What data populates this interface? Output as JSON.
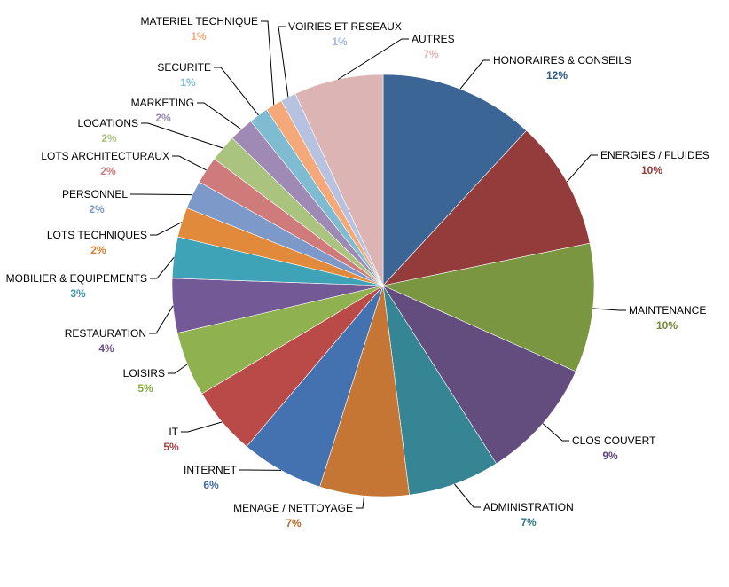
{
  "chart_data": {
    "type": "pie",
    "title": "",
    "start_angle_deg": 0,
    "direction": "clockwise",
    "legend": "none",
    "slices": [
      {
        "label": "HONORAIRES & CONSEILS",
        "pct_label": "12%",
        "value": 12.0,
        "color": "#3B6594",
        "label_color": "#2F5A88"
      },
      {
        "label": "ENERGIES / FLUIDES",
        "pct_label": "10%",
        "value": 10.0,
        "color": "#943B3B",
        "label_color": "#943B3B"
      },
      {
        "label": "MAINTENANCE",
        "pct_label": "10%",
        "value": 10.0,
        "color": "#7A9641",
        "label_color": "#6F8A38"
      },
      {
        "label": "CLOS COUVERT",
        "pct_label": "9%",
        "value": 9.4,
        "color": "#634C7E",
        "label_color": "#5A3F78"
      },
      {
        "label": "ADMINISTRATION",
        "pct_label": "7%",
        "value": 7.1,
        "color": "#358594",
        "label_color": "#2F7D8C"
      },
      {
        "label": "MENAGE / NETTOYAGE",
        "pct_label": "7%",
        "value": 6.9,
        "color": "#C67634",
        "label_color": "#B86A2C"
      },
      {
        "label": "INTERNET",
        "pct_label": "6%",
        "value": 6.4,
        "color": "#4472B0",
        "label_color": "#3A68A6"
      },
      {
        "label": "IT",
        "pct_label": "5%",
        "value": 5.3,
        "color": "#B94A48",
        "label_color": "#A84040"
      },
      {
        "label": "LOISIRS",
        "pct_label": "5%",
        "value": 5.0,
        "color": "#8FB150",
        "label_color": "#85AB45"
      },
      {
        "label": "RESTAURATION",
        "pct_label": "4%",
        "value": 4.2,
        "color": "#735A96",
        "label_color": "#6A4F8E"
      },
      {
        "label": "MOBILIER & EQUIPEMENTS",
        "pct_label": "3%",
        "value": 3.2,
        "color": "#3FA3B8",
        "label_color": "#3596AA"
      },
      {
        "label": "LOTS TECHNIQUES",
        "pct_label": "2%",
        "value": 2.3,
        "color": "#E28A3C",
        "label_color": "#D97F30"
      },
      {
        "label": "PERSONNEL",
        "pct_label": "2%",
        "value": 2.2,
        "color": "#7C99C9",
        "label_color": "#7C99C9"
      },
      {
        "label": "LOTS ARCHITECTURAUX",
        "pct_label": "2%",
        "value": 2.1,
        "color": "#D07B7B",
        "label_color": "#D07B7B"
      },
      {
        "label": "LOCATIONS",
        "pct_label": "2%",
        "value": 2.1,
        "color": "#AAC47F",
        "label_color": "#AAC47F"
      },
      {
        "label": "MARKETING",
        "pct_label": "2%",
        "value": 1.9,
        "color": "#9F89B5",
        "label_color": "#9F89B5"
      },
      {
        "label": "SECURITE",
        "pct_label": "1%",
        "value": 1.5,
        "color": "#7FBCD1",
        "label_color": "#7FBCD1"
      },
      {
        "label": "MATERIEL TECHNIQUE",
        "pct_label": "1%",
        "value": 1.3,
        "color": "#F5A97A",
        "label_color": "#F5A97A"
      },
      {
        "label": "VOIRIES ET RESEAUX",
        "pct_label": "1%",
        "value": 1.2,
        "color": "#B6C2E0",
        "label_color": "#A9B8DC"
      },
      {
        "label": "AUTRES",
        "pct_label": "7%",
        "value": 6.9,
        "color": "#DDB4B4",
        "label_color": "#E3B0B0"
      }
    ]
  }
}
